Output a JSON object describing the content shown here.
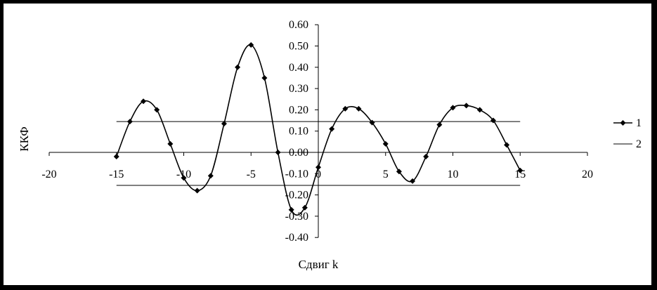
{
  "chart_data": {
    "type": "line",
    "xlabel": "Сдвиг k",
    "ylabel": "ККФ",
    "xlim": [
      -20,
      20
    ],
    "ylim": [
      -0.4,
      0.6
    ],
    "x_ticks": [
      "-20",
      "-15",
      "-10",
      "-5",
      "0",
      "5",
      "10",
      "15",
      "20"
    ],
    "y_ticks": [
      "0.60",
      "0.50",
      "0.40",
      "0.30",
      "0.20",
      "0.10",
      "0.00",
      "-0.10",
      "-0.20",
      "-0.30",
      "-0.40"
    ],
    "grid": false,
    "legend_position": "right",
    "series": [
      {
        "name": "1",
        "marker": "diamond",
        "color": "#000000",
        "x": [
          -15,
          -14,
          -13,
          -12,
          -11,
          -10,
          -9,
          -8,
          -7,
          -6,
          -5,
          -4,
          -3,
          -2,
          -1,
          0,
          1,
          2,
          3,
          4,
          5,
          6,
          7,
          8,
          9,
          10,
          11,
          12,
          13,
          14,
          15
        ],
        "y": [
          -0.02,
          0.145,
          0.24,
          0.2,
          0.04,
          -0.12,
          -0.18,
          -0.11,
          0.135,
          0.4,
          0.505,
          0.35,
          0.0,
          -0.27,
          -0.26,
          -0.07,
          0.11,
          0.205,
          0.205,
          0.14,
          0.04,
          -0.09,
          -0.135,
          -0.02,
          0.13,
          0.21,
          0.22,
          0.2,
          0.15,
          0.035,
          -0.085
        ]
      },
      {
        "name": "2",
        "marker": "none",
        "color": "#000000",
        "x": [
          -15,
          15
        ],
        "y_upper": [
          0.145,
          0.145
        ],
        "y_lower": [
          -0.155,
          -0.155
        ]
      }
    ]
  }
}
